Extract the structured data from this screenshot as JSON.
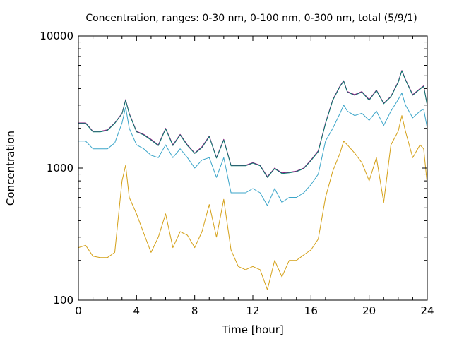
{
  "chart_data": {
    "type": "line",
    "title": "Concentration, ranges: 0-30 nm, 0-100 nm, 0-300 nm, total (5/9/1)",
    "xlabel": "Time [hour]",
    "ylabel": "Concentration",
    "y_scale": "log",
    "xlim": [
      0,
      24
    ],
    "ylim": [
      100,
      10000
    ],
    "x_ticks": [
      0,
      4,
      8,
      12,
      16,
      20,
      24
    ],
    "x_tick_labels": [
      "0",
      "4",
      "8",
      "12",
      "16",
      "20",
      "24"
    ],
    "y_ticks": [
      100,
      1000,
      10000
    ],
    "y_tick_labels": [
      "100",
      "1000",
      "10000"
    ],
    "grid": false,
    "legend": "none",
    "x": [
      0,
      0.5,
      1,
      1.5,
      2,
      2.5,
      3,
      3.25,
      3.5,
      4,
      4.5,
      5,
      5.5,
      6,
      6.5,
      7,
      7.5,
      8,
      8.5,
      9,
      9.5,
      10,
      10.5,
      11,
      11.5,
      12,
      12.5,
      13,
      13.5,
      14,
      14.5,
      15,
      15.5,
      16,
      16.5,
      17,
      17.5,
      18,
      18.25,
      18.5,
      19,
      19.5,
      20,
      20.5,
      21,
      21.5,
      22,
      22.25,
      22.5,
      23,
      23.5,
      23.75,
      24
    ],
    "series": [
      {
        "color": "#d4a017",
        "values": [
          250,
          260,
          215,
          210,
          210,
          230,
          800,
          1050,
          600,
          450,
          320,
          230,
          300,
          450,
          250,
          330,
          310,
          250,
          330,
          530,
          300,
          580,
          240,
          180,
          170,
          180,
          170,
          120,
          200,
          150,
          200,
          200,
          220,
          240,
          290,
          600,
          950,
          1300,
          1600,
          1500,
          1300,
          1100,
          800,
          1200,
          550,
          1500,
          1900,
          2500,
          1900,
          1200,
          1500,
          1400,
          750
        ]
      },
      {
        "color": "#3ba5c9",
        "values": [
          1600,
          1600,
          1400,
          1400,
          1400,
          1550,
          2200,
          2900,
          2000,
          1500,
          1400,
          1250,
          1200,
          1500,
          1200,
          1400,
          1200,
          1000,
          1150,
          1200,
          850,
          1200,
          650,
          650,
          650,
          700,
          650,
          520,
          700,
          550,
          600,
          600,
          650,
          750,
          900,
          1600,
          2000,
          2600,
          3000,
          2700,
          2500,
          2600,
          2300,
          2700,
          2100,
          2700,
          3300,
          3700,
          3000,
          2400,
          2700,
          2800,
          2000
        ]
      },
      {
        "color": "#8a1a7e",
        "values": [
          2200,
          2200,
          1900,
          1900,
          1950,
          2200,
          2600,
          3300,
          2600,
          1900,
          1800,
          1650,
          1500,
          2000,
          1500,
          1800,
          1500,
          1300,
          1450,
          1750,
          1200,
          1650,
          1050,
          1050,
          1050,
          1100,
          1050,
          860,
          1000,
          920,
          930,
          950,
          1000,
          1150,
          1350,
          2200,
          3300,
          4200,
          4600,
          3800,
          3600,
          3800,
          3300,
          3900,
          3100,
          3500,
          4500,
          5500,
          4700,
          3600,
          4000,
          4200,
          3000
        ]
      },
      {
        "color": "#0b7a6e",
        "values": [
          2180,
          2180,
          1880,
          1880,
          1930,
          2180,
          2580,
          3260,
          2570,
          1880,
          1780,
          1630,
          1480,
          1980,
          1480,
          1780,
          1480,
          1290,
          1430,
          1730,
          1190,
          1630,
          1040,
          1040,
          1040,
          1090,
          1040,
          850,
          990,
          910,
          920,
          940,
          990,
          1140,
          1330,
          2170,
          3260,
          4150,
          4550,
          3760,
          3560,
          3760,
          3260,
          3860,
          3070,
          3460,
          4450,
          5440,
          4650,
          3560,
          3960,
          4150,
          2970
        ]
      }
    ]
  }
}
